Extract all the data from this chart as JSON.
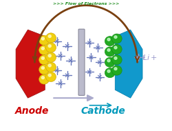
{
  "title": ">>> Flow of Electrons >>>",
  "title_color": "#1a8a1a",
  "bg_color": "#ffffff",
  "anode_label": "Anode",
  "cathode_label": "Cathode",
  "anode_color": "#cc1111",
  "cathode_color": "#1199cc",
  "anode_label_color": "#cc0000",
  "cathode_label_color": "#0099bb",
  "yellow_ball_color": "#f0d010",
  "green_ball_color": "#22aa22",
  "arc_color": "#7a4010",
  "li_color": "#9999cc",
  "arrow_color": "#aaaacc",
  "star_color": "#6677bb",
  "separator_color": "#bbbbcc",
  "separator_edge": "#888899"
}
